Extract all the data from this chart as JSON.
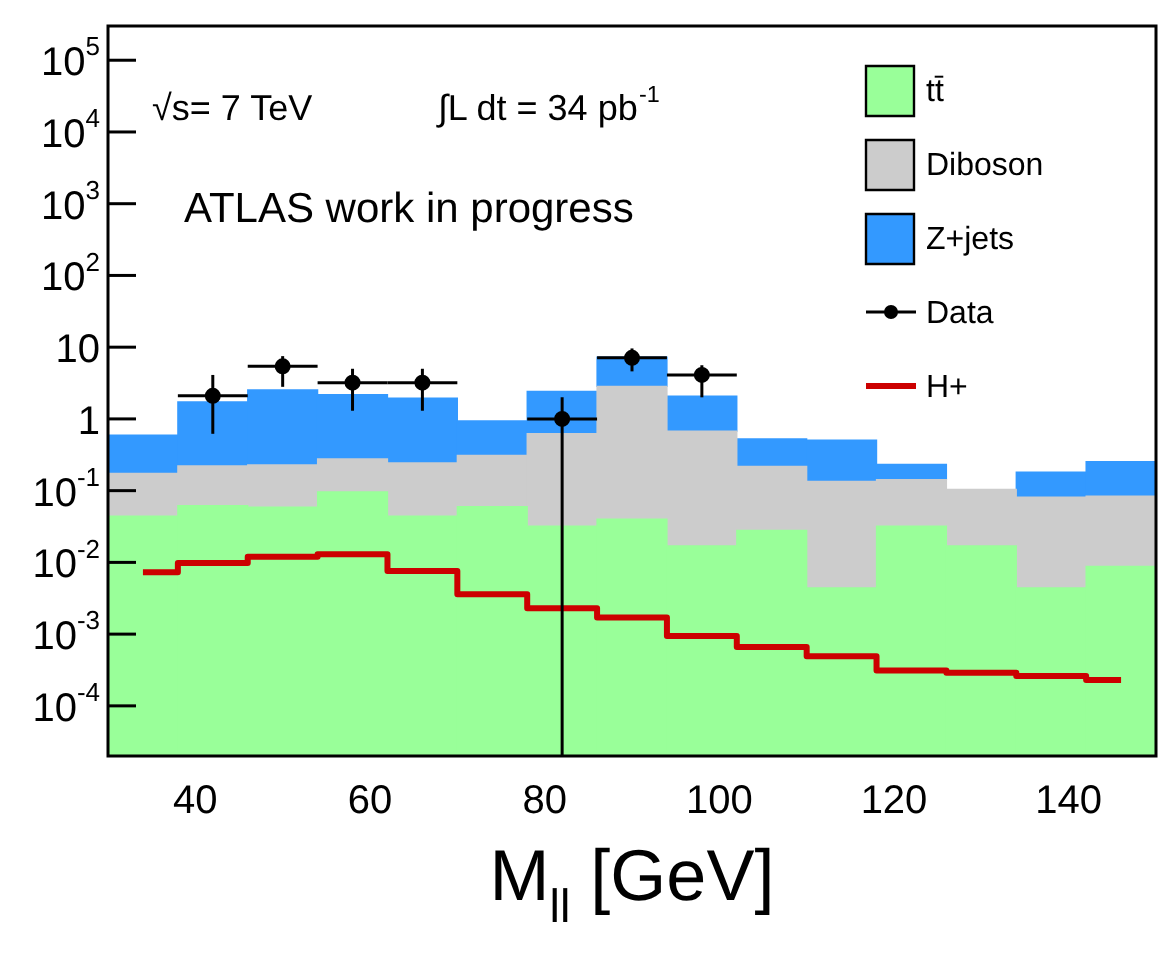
{
  "chart_data": {
    "type": "bar",
    "stacked": true,
    "log": "y",
    "legend": "top right",
    "xlabel": "M$_{ll}$ [GeV]",
    "x": [
      34,
      42,
      50,
      58,
      66,
      74,
      82,
      90,
      98,
      106,
      114,
      122,
      130,
      138,
      146
    ],
    "xlim": [
      30,
      150
    ],
    "xticks": [
      40,
      60,
      80,
      100,
      120,
      140
    ],
    "ylim": [
      2e-05,
      300000
    ],
    "yticks": [
      {
        "value": 0.0001,
        "label": "10$^{-4}$"
      },
      {
        "value": 0.001,
        "label": "10$^{-3}$"
      },
      {
        "value": 0.01,
        "label": "10$^{-2}$"
      },
      {
        "value": 0.1,
        "label": "10$^{-1}$"
      },
      1,
      10,
      {
        "value": 100,
        "label": "10$^{2}$"
      },
      {
        "value": 1000,
        "label": "10$^{3}$"
      },
      {
        "value": 10000,
        "label": "10$^{4}$"
      },
      {
        "value": 100000,
        "label": "10$^{5}$"
      }
    ],
    "annotations": [
      "√s= 7 TeV",
      "∫L dt = 34 pb$^{-1}$",
      "ATLAS work in progress"
    ],
    "series": [
      {
        "name": "tt̄",
        "color": "#99ff99",
        "values": [
          0.044,
          0.062,
          0.059,
          0.096,
          0.044,
          0.06,
          0.032,
          0.04,
          0.017,
          0.028,
          0.0044,
          0.032,
          0.017,
          0.0044,
          0.0088
        ]
      },
      {
        "name": "Diboson",
        "color": "#cccccc",
        "values": [
          0.13,
          0.16,
          0.17,
          0.18,
          0.2,
          0.25,
          0.59,
          2.8,
          0.66,
          0.19,
          0.13,
          0.11,
          0.087,
          0.077,
          0.075
        ]
      },
      {
        "name": "Z+jets",
        "color": "#3399ff",
        "values": [
          0.42,
          1.5,
          2.3,
          1.9,
          1.7,
          0.63,
          1.8,
          4.4,
          1.4,
          0.31,
          0.37,
          0.09,
          null,
          0.099,
          0.17
        ]
      },
      {
        "name": "Data",
        "type": "scatter",
        "marker": "circle",
        "color": "#000000",
        "x": [
          42,
          50,
          58,
          66,
          82,
          90,
          98
        ],
        "values": [
          2.1,
          5.4,
          3.2,
          3.2,
          1.0,
          7.1,
          4.1
        ],
        "errors": [
          [
            0.62,
            4.1
          ],
          [
            2.8,
            7.5
          ],
          [
            1.3,
            5.0
          ],
          [
            1.3,
            5.0
          ],
          [
            2e-05,
            2.0
          ],
          [
            4.6,
            9.6
          ],
          [
            2.0,
            5.6
          ]
        ],
        "xerrors": [
          4,
          4,
          4,
          4,
          4,
          4,
          4
        ]
      },
      {
        "name": "H+",
        "type": "step",
        "color": "#cc0000",
        "values": [
          0.0073,
          0.0098,
          0.012,
          0.013,
          0.0076,
          0.0036,
          0.0023,
          0.0017,
          0.00094,
          0.00066,
          0.00049,
          0.00031,
          0.00029,
          0.00026,
          0.00023
        ]
      }
    ]
  }
}
